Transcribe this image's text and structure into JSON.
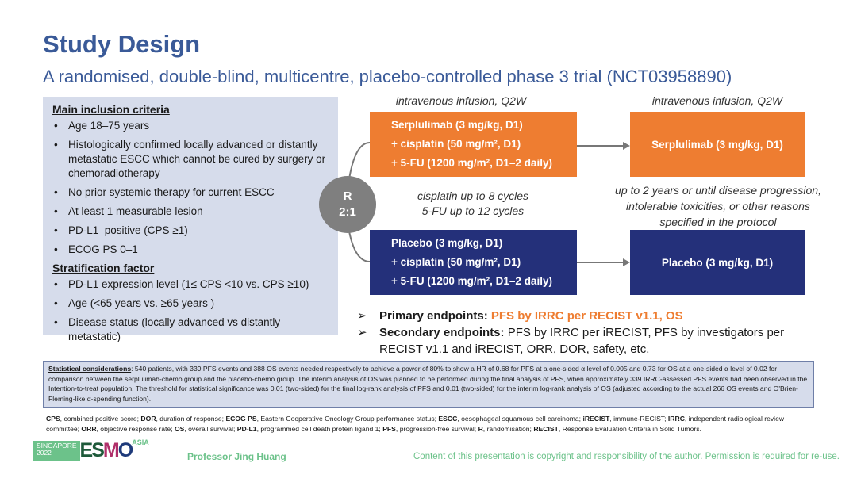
{
  "title": "Study Design",
  "subtitle": "A randomised, double-blind, multicentre, placebo-controlled phase 3 trial (NCT03958890)",
  "inclusion": {
    "heading": "Main inclusion criteria",
    "items": [
      "Age 18–75 years",
      "Histologically confirmed locally advanced or distantly metastatic ESCC which cannot be cured by surgery or chemoradiotherapy",
      "No prior systemic therapy for current ESCC",
      "At least 1 measurable lesion",
      "PD-L1–positive (CPS ≥1)",
      "ECOG PS 0–1"
    ]
  },
  "stratification": {
    "heading": "Stratification factor",
    "items": [
      "PD-L1 expression level (1≤ CPS <10 vs. CPS ≥10)",
      "Age (<65 years vs. ≥65 years )",
      "Disease status (locally advanced vs distantly metastatic)"
    ]
  },
  "randomisation": {
    "label": "R",
    "ratio": "2:1"
  },
  "infusion_label_left": "intravenous infusion, Q2W",
  "infusion_label_right": "intravenous infusion, Q2W",
  "arm1": {
    "lines": [
      "Serplulimab (3 mg/kg, D1)",
      "+ cisplatin (50 mg/m², D1)",
      "+ 5-FU (1200 mg/m², D1–2 daily)"
    ],
    "maintenance": "Serplulimab (3 mg/kg, D1)"
  },
  "arm2": {
    "lines": [
      "Placebo (3 mg/kg, D1)",
      "+ cisplatin (50 mg/m², D1)",
      "+ 5-FU (1200 mg/m², D1–2 daily)"
    ],
    "maintenance": "Placebo (3 mg/kg, D1)"
  },
  "cycles": [
    "cisplatin up to 8 cycles",
    "5-FU up to 12 cycles"
  ],
  "duration": [
    "up to 2 years or until disease progression,",
    "intolerable toxicities, or other reasons",
    "specified in the protocol"
  ],
  "endpoints": {
    "primary_label": "Primary endpoints:",
    "primary_value": "PFS by IRRC per RECIST v1.1, OS",
    "secondary_label": "Secondary endpoints:",
    "secondary_value": "PFS by IRRC per iRECIST, PFS by investigators per RECIST v1.1 and iRECIST, ORR, DOR, safety, etc."
  },
  "statistical": {
    "label": "Statistical considerations",
    "text": ": 540 patients, with 339 PFS events and 388 OS events needed respectively to achieve a power of 80% to show a HR of 0.68 for PFS at a one-sided α level of 0.005 and 0.73 for OS at a one-sided α level of 0.02 for comparison between the serplulimab-chemo group and the placebo-chemo group. The interim analysis of OS was planned to be performed during the final analysis of PFS, when approximately 339 IRRC-assessed PFS events had been observed in the Intention-to-treat population. The threshold for statistical significance was 0.01 (two-sided) for the final log-rank analysis of PFS and 0.01 (two-sided) for the interim log-rank analysis of OS (adjusted according to the actual 266 OS events and O'Brien-Fleming-like α-spending function)."
  },
  "abbreviations": [
    [
      "CPS",
      ", combined positive score; "
    ],
    [
      "DOR",
      ", duration of response; "
    ],
    [
      "ECOG PS",
      ", Eastern Cooperative Oncology Group performance status; "
    ],
    [
      "ESCC",
      ", oesophageal squamous cell carcinoma; "
    ],
    [
      "iRECIST",
      ", immune-RECIST; "
    ],
    [
      "IRRC",
      ", independent radiological review committee; "
    ],
    [
      "ORR",
      ", objective response rate; "
    ],
    [
      "OS",
      ", overall survival; "
    ],
    [
      "PD-L1",
      ", programmed cell death protein ligand 1; "
    ],
    [
      "PFS",
      ", progression-free survival; "
    ],
    [
      "R",
      ", randomisation; "
    ],
    [
      "RECIST",
      ", Response Evaluation Criteria in Solid Tumors."
    ]
  ],
  "footer": {
    "logo_city": "SINGAPORE",
    "logo_year": "2022",
    "logo_brand": "ESMO",
    "logo_region": "ASIA",
    "presenter": "Professor Jing Huang",
    "copyright": "Content of this presentation is copyright and responsibility of the author. Permission is required for re-use."
  },
  "colors": {
    "title": "#3a5a98",
    "orange": "#ee7d31",
    "navy": "#24307a",
    "panel": "#d6dceb",
    "footer_green": "#6cc28a"
  }
}
